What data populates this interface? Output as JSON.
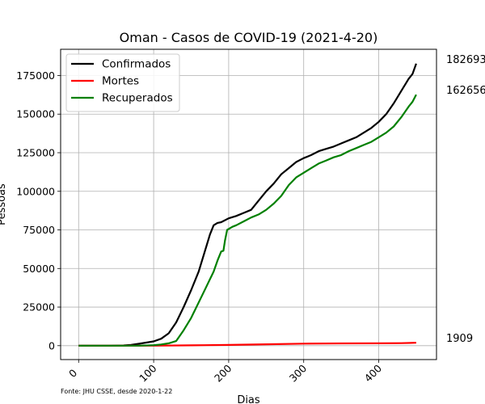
{
  "chart_data": {
    "type": "line",
    "title": "Oman - Casos de COVID-19 (2021-4-20)",
    "xlabel": "Dias",
    "ylabel": "Pessoas",
    "xlim": [
      -24,
      477
    ],
    "ylim": [
      -9000,
      192000
    ],
    "xticks": [
      0,
      100,
      200,
      300,
      400
    ],
    "yticks": [
      0,
      25000,
      50000,
      75000,
      100000,
      125000,
      150000,
      175000
    ],
    "grid": true,
    "legend": "top-left",
    "source": "Fonte: JHU CSSE, desde 2020-1-22",
    "series": [
      {
        "name": "Confirmados",
        "color": "#000000",
        "end_label": "182693",
        "points": [
          [
            0,
            0
          ],
          [
            40,
            0
          ],
          [
            60,
            150
          ],
          [
            70,
            500
          ],
          [
            80,
            1200
          ],
          [
            90,
            2000
          ],
          [
            100,
            2800
          ],
          [
            110,
            4500
          ],
          [
            120,
            8000
          ],
          [
            130,
            15000
          ],
          [
            140,
            25000
          ],
          [
            150,
            36000
          ],
          [
            160,
            48000
          ],
          [
            170,
            64000
          ],
          [
            175,
            72000
          ],
          [
            180,
            78000
          ],
          [
            185,
            79500
          ],
          [
            190,
            80000
          ],
          [
            200,
            82500
          ],
          [
            210,
            84000
          ],
          [
            220,
            86000
          ],
          [
            230,
            88000
          ],
          [
            240,
            94000
          ],
          [
            250,
            100000
          ],
          [
            260,
            105000
          ],
          [
            270,
            111000
          ],
          [
            280,
            115000
          ],
          [
            290,
            119000
          ],
          [
            300,
            121500
          ],
          [
            310,
            123500
          ],
          [
            320,
            126000
          ],
          [
            330,
            127500
          ],
          [
            340,
            129000
          ],
          [
            350,
            131000
          ],
          [
            360,
            133000
          ],
          [
            370,
            135000
          ],
          [
            380,
            138000
          ],
          [
            390,
            141000
          ],
          [
            400,
            145000
          ],
          [
            410,
            150000
          ],
          [
            420,
            157000
          ],
          [
            430,
            165000
          ],
          [
            440,
            173000
          ],
          [
            445,
            176000
          ],
          [
            450,
            182693
          ]
        ]
      },
      {
        "name": "Mortes",
        "color": "#ff0000",
        "end_label": "1909",
        "points": [
          [
            0,
            0
          ],
          [
            60,
            5
          ],
          [
            100,
            20
          ],
          [
            150,
            200
          ],
          [
            200,
            500
          ],
          [
            250,
            900
          ],
          [
            300,
            1300
          ],
          [
            350,
            1450
          ],
          [
            400,
            1500
          ],
          [
            430,
            1650
          ],
          [
            450,
            1909
          ]
        ]
      },
      {
        "name": "Recuperados",
        "color": "#008000",
        "end_label": "162656",
        "points": [
          [
            0,
            0
          ],
          [
            80,
            0
          ],
          [
            100,
            300
          ],
          [
            110,
            800
          ],
          [
            120,
            1500
          ],
          [
            130,
            3000
          ],
          [
            140,
            10000
          ],
          [
            150,
            18000
          ],
          [
            160,
            28000
          ],
          [
            170,
            38000
          ],
          [
            180,
            48000
          ],
          [
            185,
            55000
          ],
          [
            190,
            61000
          ],
          [
            193,
            61500
          ],
          [
            195,
            68000
          ],
          [
            198,
            75000
          ],
          [
            205,
            77000
          ],
          [
            210,
            78000
          ],
          [
            220,
            80500
          ],
          [
            230,
            83000
          ],
          [
            240,
            85000
          ],
          [
            250,
            88000
          ],
          [
            260,
            92000
          ],
          [
            270,
            97000
          ],
          [
            280,
            104000
          ],
          [
            290,
            109000
          ],
          [
            300,
            112000
          ],
          [
            310,
            115000
          ],
          [
            320,
            118000
          ],
          [
            330,
            120000
          ],
          [
            340,
            122000
          ],
          [
            350,
            123500
          ],
          [
            360,
            126000
          ],
          [
            370,
            128000
          ],
          [
            380,
            130000
          ],
          [
            390,
            132000
          ],
          [
            400,
            135000
          ],
          [
            410,
            138000
          ],
          [
            420,
            142000
          ],
          [
            430,
            148000
          ],
          [
            440,
            155000
          ],
          [
            445,
            158000
          ],
          [
            450,
            162656
          ]
        ]
      }
    ]
  }
}
